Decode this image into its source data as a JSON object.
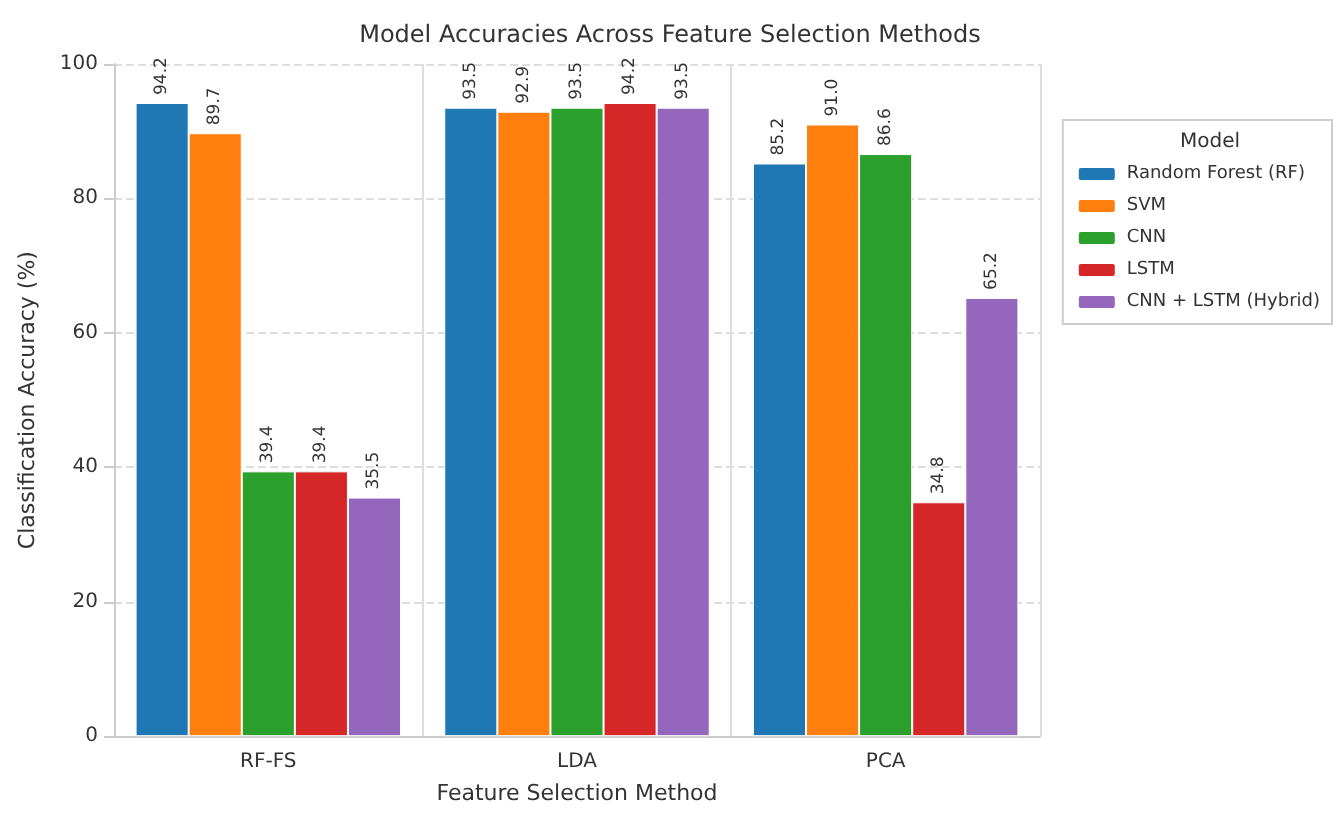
{
  "chart_data": {
    "type": "bar",
    "title": "Model Accuracies Across Feature Selection Methods",
    "xlabel": "Feature Selection Method",
    "ylabel": "Classification Accuracy (%)",
    "legend_title": "Model",
    "categories": [
      "RF-FS",
      "LDA",
      "PCA"
    ],
    "series": [
      {
        "name": "Random Forest (RF)",
        "color": "#1f77b4",
        "values": [
          94.2,
          93.5,
          85.2
        ],
        "value_labels": [
          "94.2",
          "93.5",
          "85.2"
        ]
      },
      {
        "name": "SVM",
        "color": "#ff7f0e",
        "values": [
          89.7,
          92.9,
          91.0
        ],
        "value_labels": [
          "89.7",
          "92.9",
          "91.0"
        ]
      },
      {
        "name": "CNN",
        "color": "#2ca02c",
        "values": [
          39.4,
          93.5,
          86.6
        ],
        "value_labels": [
          "39.4",
          "93.5",
          "86.6"
        ]
      },
      {
        "name": "LSTM",
        "color": "#d62728",
        "values": [
          39.4,
          94.2,
          34.8
        ],
        "value_labels": [
          "39.4",
          "94.2",
          "34.8"
        ]
      },
      {
        "name": "CNN + LSTM (Hybrid)",
        "color": "#9467bd",
        "values": [
          35.5,
          93.5,
          65.2
        ],
        "value_labels": [
          "35.5",
          "93.5",
          "65.2"
        ]
      }
    ],
    "ylim": [
      0,
      100
    ],
    "yticks": [
      0,
      20,
      40,
      60,
      80,
      100
    ],
    "grid": true,
    "legend": "right"
  }
}
